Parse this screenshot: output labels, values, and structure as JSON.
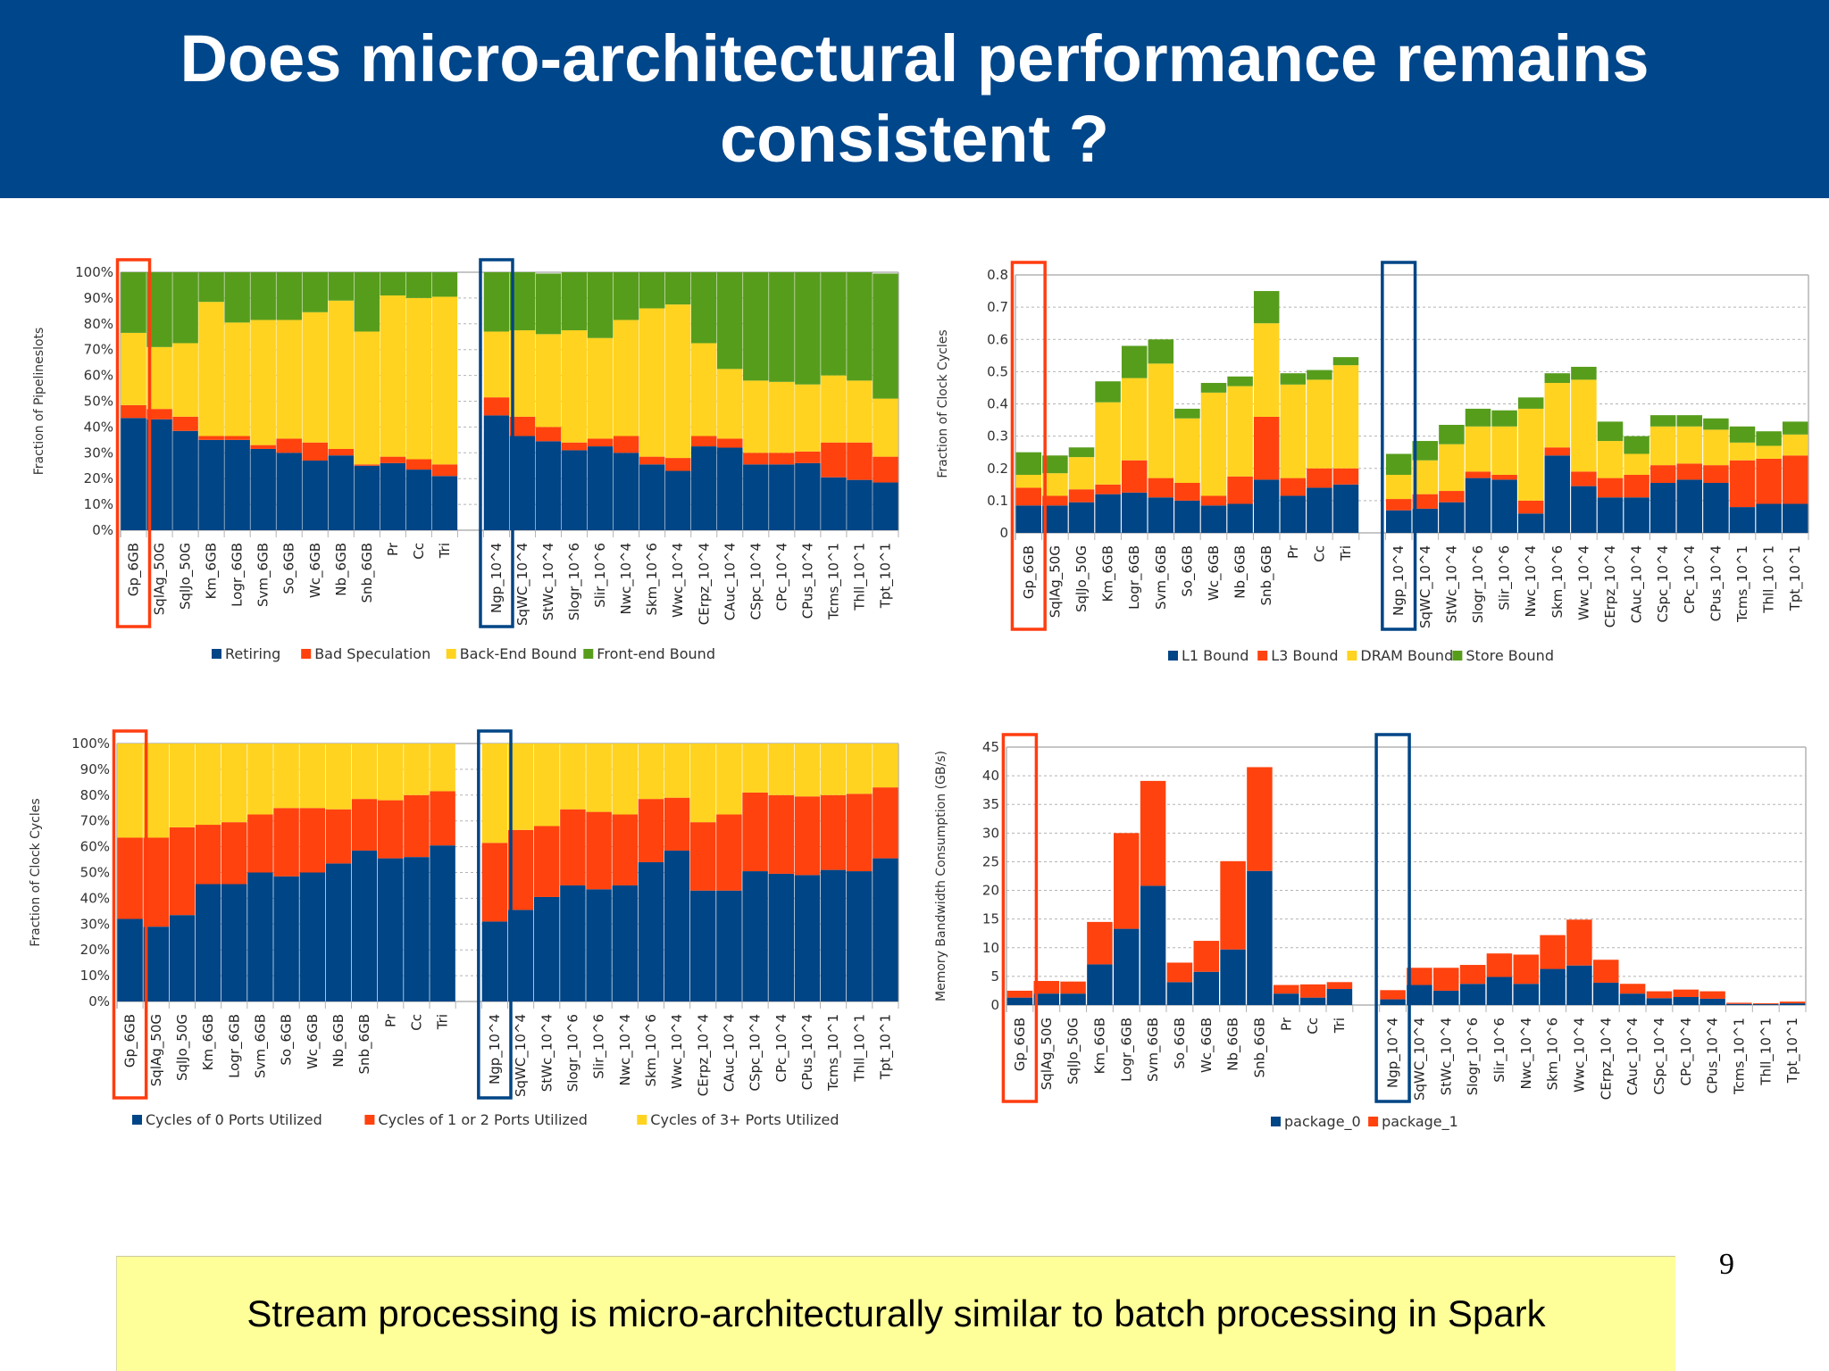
{
  "slide": {
    "title": "Does micro-architectural performance remains consistent ?",
    "callout": "Stream processing is micro-architecturally similar to batch processing in Spark",
    "page_number": "9",
    "colors": {
      "header_bg": "#00468a",
      "callout_bg": "#ffff99",
      "batch_highlight": "#ff3d10",
      "stream_highlight": "#004586",
      "series_blue": "#004586",
      "series_red": "#ff420e",
      "series_yellow": "#ffd320",
      "series_green": "#579d1c"
    }
  },
  "chart_data": [
    {
      "id": "topdown",
      "type": "bar",
      "stacked": true,
      "title": "",
      "xlabel": "",
      "ylabel": "Fraction of Pipelineslots",
      "ylim": [
        0,
        100
      ],
      "yticks": [
        "0%",
        "10%",
        "20%",
        "30%",
        "40%",
        "50%",
        "60%",
        "70%",
        "80%",
        "90%",
        "100%"
      ],
      "grid": true,
      "legend_position": "bottom",
      "categories": [
        "Gp_6GB",
        "SqlAg_50G",
        "SqlJo_50G",
        "Km_6GB",
        "Logr_6GB",
        "Svm_6GB",
        "So_6GB",
        "Wc_6GB",
        "Nb_6GB",
        "Snb_6GB",
        "Pr",
        "Cc",
        "Tri",
        "",
        "Ngp_10^4",
        "SqWC_10^4",
        "StWc_10^4",
        "Slogr_10^6",
        "Slir_10^6",
        "Nwc_10^4",
        "Skm_10^6",
        "Wwc_10^4",
        "CErpz_10^4",
        "CAuc_10^4",
        "CSpc_10^4",
        "CPc_10^4",
        "CPus_10^4",
        "Tcms_10^1",
        "Thll_10^1",
        "Tpt_10^1"
      ],
      "highlight": {
        "batch": "Gp_6GB",
        "stream": "Ngp_10^4"
      },
      "series": [
        {
          "name": "Retiring",
          "color": "#004586",
          "values": [
            43.5,
            43,
            38.5,
            35,
            35,
            31.5,
            30,
            27,
            29,
            25,
            26,
            23.5,
            21,
            null,
            44.5,
            36.5,
            34.5,
            31,
            32.5,
            30,
            25.5,
            23,
            32.5,
            32,
            25.5,
            25.5,
            26,
            20.5,
            19.5,
            18.5
          ]
        },
        {
          "name": "Bad Speculation",
          "color": "#ff420e",
          "values": [
            5,
            4,
            5.5,
            1.5,
            1.5,
            1.5,
            5.5,
            7,
            2.5,
            0.5,
            2.5,
            4,
            4.5,
            null,
            7,
            7.5,
            5.5,
            3,
            3,
            6.5,
            3,
            5,
            4,
            3.5,
            4.5,
            4.5,
            4.5,
            13.5,
            14.5,
            10
          ]
        },
        {
          "name": "Back-End Bound",
          "color": "#ffd320",
          "values": [
            28,
            24,
            28.5,
            52,
            44,
            48.5,
            46,
            50.5,
            57.5,
            51.5,
            62.5,
            62.5,
            65,
            null,
            25.5,
            33.5,
            36,
            43.5,
            39,
            45,
            57.5,
            59.5,
            36,
            27,
            28,
            27.5,
            26,
            26,
            24,
            22.5
          ]
        },
        {
          "name": "Front-end Bound",
          "color": "#579d1c",
          "values": [
            23.5,
            29,
            27.5,
            11.5,
            19.5,
            18.5,
            18.5,
            15.5,
            11,
            23,
            9,
            10,
            9.5,
            null,
            23,
            22.5,
            23.5,
            22.5,
            25.5,
            18.5,
            14,
            12.5,
            27.5,
            37.5,
            42,
            42.5,
            43.5,
            40,
            42,
            48.5
          ]
        }
      ]
    },
    {
      "id": "memory-bound",
      "type": "bar",
      "stacked": true,
      "title": "",
      "xlabel": "",
      "ylabel": "Fraction of Clock Cycles",
      "ylim": [
        0,
        0.8
      ],
      "yticks": [
        "0",
        "0.1",
        "0.2",
        "0.3",
        "0.4",
        "0.5",
        "0.6",
        "0.7",
        "0.8"
      ],
      "grid": true,
      "legend_position": "bottom",
      "categories": [
        "Gp_6GB",
        "SqlAg_50G",
        "SqlJo_50G",
        "Km_6GB",
        "Logr_6GB",
        "Svm_6GB",
        "So_6GB",
        "Wc_6GB",
        "Nb_6GB",
        "Snb_6GB",
        "Pr",
        "Cc",
        "Tri",
        "",
        "Ngp_10^4",
        "SqWC_10^4",
        "StWc_10^4",
        "Slogr_10^6",
        "Slir_10^6",
        "Nwc_10^4",
        "Skm_10^6",
        "Wwc_10^4",
        "CErpz_10^4",
        "CAuc_10^4",
        "CSpc_10^4",
        "CPc_10^4",
        "CPus_10^4",
        "Tcms_10^1",
        "Thll_10^1",
        "Tpt_10^1"
      ],
      "highlight": {
        "batch": "Gp_6GB",
        "stream": "Ngp_10^4"
      },
      "series": [
        {
          "name": "L1 Bound",
          "color": "#004586",
          "values": [
            0.085,
            0.085,
            0.095,
            0.12,
            0.125,
            0.11,
            0.1,
            0.085,
            0.09,
            0.165,
            0.115,
            0.14,
            0.15,
            null,
            0.07,
            0.075,
            0.095,
            0.17,
            0.165,
            0.06,
            0.24,
            0.145,
            0.11,
            0.11,
            0.155,
            0.165,
            0.155,
            0.08,
            0.09,
            0.09
          ]
        },
        {
          "name": "L3 Bound",
          "color": "#ff420e",
          "values": [
            0.055,
            0.03,
            0.04,
            0.03,
            0.1,
            0.06,
            0.055,
            0.03,
            0.085,
            0.195,
            0.055,
            0.06,
            0.05,
            null,
            0.035,
            0.045,
            0.035,
            0.02,
            0.015,
            0.04,
            0.025,
            0.045,
            0.06,
            0.07,
            0.055,
            0.05,
            0.055,
            0.145,
            0.14,
            0.15
          ]
        },
        {
          "name": "DRAM Bound",
          "color": "#ffd320",
          "values": [
            0.04,
            0.07,
            0.1,
            0.255,
            0.255,
            0.355,
            0.2,
            0.32,
            0.28,
            0.29,
            0.29,
            0.275,
            0.32,
            null,
            0.075,
            0.105,
            0.145,
            0.14,
            0.15,
            0.285,
            0.2,
            0.285,
            0.115,
            0.065,
            0.12,
            0.115,
            0.11,
            0.055,
            0.04,
            0.065
          ]
        },
        {
          "name": "Store Bound",
          "color": "#579d1c",
          "values": [
            0.07,
            0.055,
            0.03,
            0.065,
            0.1,
            0.075,
            0.03,
            0.03,
            0.03,
            0.1,
            0.035,
            0.03,
            0.025,
            null,
            0.065,
            0.06,
            0.06,
            0.055,
            0.05,
            0.035,
            0.03,
            0.04,
            0.06,
            0.055,
            0.035,
            0.035,
            0.035,
            0.05,
            0.045,
            0.04
          ]
        }
      ]
    },
    {
      "id": "port-utilization",
      "type": "bar",
      "stacked": true,
      "title": "",
      "xlabel": "",
      "ylabel": "Fraction of Clock Cycles",
      "ylim": [
        0,
        100
      ],
      "yticks": [
        "0%",
        "10%",
        "20%",
        "30%",
        "40%",
        "50%",
        "60%",
        "70%",
        "80%",
        "90%",
        "100%"
      ],
      "grid": true,
      "legend_position": "bottom",
      "categories": [
        "Gp_6GB",
        "SqlAg_50G",
        "SqlJo_50G",
        "Km_6GB",
        "Logr_6GB",
        "Svm_6GB",
        "So_6GB",
        "Wc_6GB",
        "Nb_6GB",
        "Snb_6GB",
        "Pr",
        "Cc",
        "Tri",
        "",
        "Ngp_10^4",
        "SqWC_10^4",
        "StWc_10^4",
        "Slogr_10^6",
        "Slir_10^6",
        "Nwc_10^4",
        "Skm_10^6",
        "Wwc_10^4",
        "CErpz_10^4",
        "CAuc_10^4",
        "CSpc_10^4",
        "CPc_10^4",
        "CPus_10^4",
        "Tcms_10^1",
        "Thll_10^1",
        "Tpt_10^1"
      ],
      "highlight": {
        "batch": "Gp_6GB",
        "stream": "Ngp_10^4"
      },
      "series": [
        {
          "name": "Cycles of 0 Ports Utilized",
          "color": "#004586",
          "values": [
            32,
            29,
            33.5,
            45.5,
            45.5,
            50,
            48.5,
            50,
            53.5,
            58.5,
            55.5,
            56,
            60.5,
            null,
            31,
            35.5,
            40.5,
            45,
            43.5,
            45,
            54,
            58.5,
            43,
            43,
            50.5,
            49.5,
            49,
            51,
            50.5,
            55.5
          ]
        },
        {
          "name": "Cycles of 1 or 2 Ports Utilized",
          "color": "#ff420e",
          "values": [
            31.5,
            34.5,
            34,
            23,
            24,
            22.5,
            26.5,
            25,
            21,
            20,
            22.5,
            24,
            21,
            null,
            30.5,
            31,
            27.5,
            29.5,
            30,
            27.5,
            24.5,
            20.5,
            26.5,
            29.5,
            30.5,
            30.5,
            30.5,
            29,
            30,
            27.5
          ]
        },
        {
          "name": "Cycles of 3+ Ports Utilized",
          "color": "#ffd320",
          "values": [
            36.5,
            36.5,
            32.5,
            31.5,
            30.5,
            27.5,
            25,
            25,
            25.5,
            21.5,
            22,
            20,
            18.5,
            null,
            38.5,
            33.5,
            32,
            25.5,
            26.5,
            27.5,
            21.5,
            21,
            30.5,
            27.5,
            19,
            20,
            20.5,
            20,
            19.5,
            17
          ]
        }
      ]
    },
    {
      "id": "memory-bandwidth",
      "type": "bar",
      "stacked": true,
      "title": "",
      "xlabel": "",
      "ylabel": "Memory Bandwidth Consumption (GB/s)",
      "ylim": [
        0,
        45
      ],
      "yticks": [
        "0",
        "5",
        "10",
        "15",
        "20",
        "25",
        "30",
        "35",
        "40",
        "45"
      ],
      "grid": true,
      "legend_position": "bottom",
      "categories": [
        "Gp_6GB",
        "SqlAg_50G",
        "SqlJo_50G",
        "Km_6GB",
        "Logr_6GB",
        "Svm_6GB",
        "So_6GB",
        "Wc_6GB",
        "Nb_6GB",
        "Snb_6GB",
        "Pr",
        "Cc",
        "Tri",
        "",
        "Ngp_10^4",
        "SqWC_10^4",
        "StWc_10^4",
        "Slogr_10^6",
        "Slir_10^6",
        "Nwc_10^4",
        "Skm_10^6",
        "Wwc_10^4",
        "CErpz_10^4",
        "CAuc_10^4",
        "CSpc_10^4",
        "CPc_10^4",
        "CPus_10^4",
        "Tcms_10^1",
        "Thll_10^1",
        "Tpt_10^1"
      ],
      "highlight": {
        "batch": "Gp_6GB",
        "stream": "Ngp_10^4"
      },
      "series": [
        {
          "name": "package_0",
          "color": "#004586",
          "values": [
            1.3,
            2,
            2,
            7.1,
            13.3,
            20.8,
            4,
            5.8,
            9.7,
            23.4,
            2,
            1.3,
            2.8,
            null,
            1,
            3.5,
            2.5,
            3.7,
            4.9,
            3.7,
            6.3,
            6.9,
            3.9,
            2,
            1.2,
            1.4,
            1.1,
            0.2,
            0.15,
            0.3
          ]
        },
        {
          "name": "package_1",
          "color": "#ff420e",
          "values": [
            1.2,
            2.2,
            2.1,
            7.4,
            16.7,
            18.3,
            3.4,
            5.4,
            15.4,
            18.1,
            1.5,
            2.3,
            1.2,
            null,
            1.6,
            3,
            4,
            3.3,
            4.1,
            5.1,
            5.9,
            8,
            4,
            1.7,
            1.2,
            1.3,
            1.3,
            0.2,
            0.15,
            0.3
          ]
        }
      ]
    }
  ]
}
